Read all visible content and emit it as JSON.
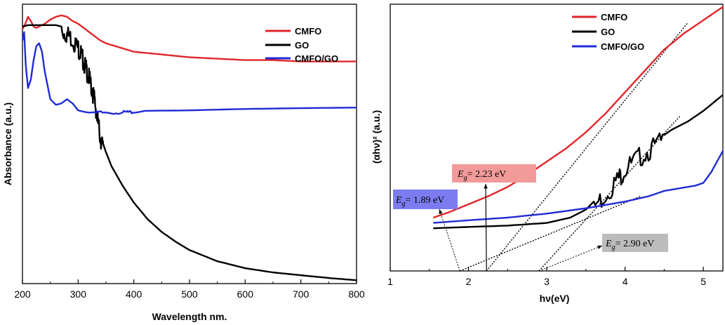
{
  "chart_data": [
    {
      "type": "line",
      "panel": "left",
      "title": "",
      "xlabel": "Wavelength nm.",
      "ylabel": "Absorbance (a.u.)",
      "xlim": [
        200,
        800
      ],
      "ylim": [
        0,
        1
      ],
      "xticks": [
        200,
        300,
        400,
        500,
        600,
        700,
        800
      ],
      "yticks_shown": false,
      "legend_position": "top-right",
      "series": [
        {
          "name": "CMFO",
          "color": "#e0262b",
          "x": [
            200,
            205,
            210,
            215,
            220,
            225,
            230,
            240,
            250,
            260,
            270,
            280,
            290,
            300,
            310,
            320,
            330,
            340,
            350,
            375,
            400,
            450,
            500,
            550,
            600,
            650,
            700,
            750,
            800
          ],
          "y": [
            0.91,
            0.93,
            0.955,
            0.94,
            0.92,
            0.915,
            0.92,
            0.93,
            0.945,
            0.955,
            0.96,
            0.955,
            0.94,
            0.93,
            0.915,
            0.9,
            0.885,
            0.87,
            0.86,
            0.845,
            0.83,
            0.82,
            0.81,
            0.805,
            0.8,
            0.8,
            0.795,
            0.795,
            0.795
          ]
        },
        {
          "name": "GO",
          "color": "#000000",
          "x": [
            200,
            210,
            220,
            240,
            260,
            270,
            280,
            290,
            300,
            305,
            310,
            315,
            320,
            325,
            330,
            335,
            340,
            345,
            350,
            360,
            380,
            400,
            425,
            450,
            475,
            500,
            550,
            600,
            650,
            700,
            750,
            800
          ],
          "y": [
            0.92,
            0.925,
            0.925,
            0.925,
            0.925,
            0.92,
            0.91,
            0.89,
            0.86,
            0.84,
            0.81,
            0.78,
            0.75,
            0.71,
            0.67,
            0.6,
            0.54,
            0.5,
            0.47,
            0.42,
            0.35,
            0.29,
            0.23,
            0.185,
            0.15,
            0.12,
            0.08,
            0.055,
            0.04,
            0.03,
            0.02,
            0.012
          ]
        },
        {
          "name": "CMFO/GO",
          "color": "#1f2bd6",
          "x": [
            200,
            203,
            206,
            210,
            215,
            220,
            225,
            230,
            235,
            240,
            250,
            260,
            270,
            280,
            290,
            300,
            310,
            320,
            340,
            380,
            400,
            500,
            600,
            700,
            800
          ],
          "y": [
            0.87,
            0.9,
            0.78,
            0.7,
            0.73,
            0.8,
            0.85,
            0.86,
            0.83,
            0.76,
            0.66,
            0.64,
            0.645,
            0.66,
            0.645,
            0.62,
            0.615,
            0.612,
            0.615,
            0.615,
            0.618,
            0.62,
            0.625,
            0.628,
            0.63
          ]
        }
      ]
    },
    {
      "type": "line",
      "panel": "right",
      "title": "",
      "xlabel": "hν(eV)",
      "ylabel": "(αhν)² (a.u.)",
      "xlim": [
        1,
        5.25
      ],
      "ylim": [
        0,
        1
      ],
      "xticks": [
        1,
        2,
        3,
        4,
        5
      ],
      "yticks_shown": false,
      "legend_position": "top-right",
      "series": [
        {
          "name": "CMFO",
          "color": "#e0262b",
          "x": [
            1.55,
            1.75,
            2.0,
            2.25,
            2.5,
            2.75,
            3.0,
            3.25,
            3.5,
            3.75,
            4.0,
            4.25,
            4.5,
            4.75,
            5.0,
            5.25
          ],
          "y": [
            0.2,
            0.22,
            0.25,
            0.28,
            0.315,
            0.36,
            0.41,
            0.46,
            0.52,
            0.59,
            0.67,
            0.75,
            0.83,
            0.89,
            0.94,
            0.99
          ]
        },
        {
          "name": "GO",
          "color": "#000000",
          "x": [
            1.55,
            2.0,
            2.5,
            3.0,
            3.3,
            3.5,
            3.7,
            3.9,
            4.0,
            4.2,
            4.4,
            4.6,
            4.8,
            5.0,
            5.25
          ],
          "y": [
            0.16,
            0.165,
            0.17,
            0.18,
            0.2,
            0.23,
            0.29,
            0.36,
            0.4,
            0.45,
            0.49,
            0.53,
            0.56,
            0.6,
            0.66
          ]
        },
        {
          "name": "CMFO/GO",
          "color": "#1f2bd6",
          "x": [
            1.55,
            2.0,
            2.5,
            3.0,
            3.5,
            4.0,
            4.3,
            4.5,
            4.7,
            4.9,
            5.0,
            5.1,
            5.25
          ],
          "y": [
            0.18,
            0.19,
            0.2,
            0.215,
            0.235,
            0.26,
            0.28,
            0.3,
            0.31,
            0.32,
            0.33,
            0.37,
            0.45
          ]
        }
      ],
      "fit_lines": [
        {
          "series": "CMFO",
          "from": [
            2.23,
            0.0
          ],
          "to": [
            4.8,
            0.93
          ]
        },
        {
          "series": "GO",
          "from": [
            2.9,
            0.0
          ],
          "to": [
            4.7,
            0.58
          ]
        },
        {
          "series": "CMFO/GO",
          "from": [
            1.89,
            0.0
          ],
          "to": [
            4.2,
            0.28
          ]
        }
      ],
      "annotations": [
        {
          "symbol": "E",
          "subscript": "g",
          "text": "= 2.23 eV",
          "color": "#f29a9a",
          "x_value": 2.23
        },
        {
          "symbol": "E",
          "subscript": "g",
          "text": "= 1.89 eV",
          "color": "#7c7cf0",
          "x_value": 1.89
        },
        {
          "symbol": "E",
          "subscript": "g",
          "text": "= 2.90 eV",
          "color": "#bcbcbc",
          "x_value": 2.9
        }
      ]
    }
  ]
}
